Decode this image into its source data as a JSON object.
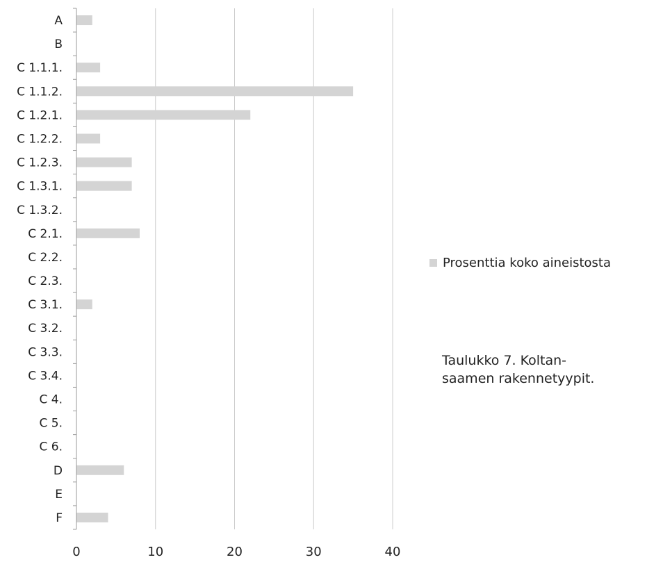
{
  "chart_data": {
    "type": "bar",
    "orientation": "horizontal",
    "categories": [
      "A",
      "B",
      "C 1.1.1.",
      "C 1.1.2.",
      "C 1.2.1.",
      "C 1.2.2.",
      "C 1.2.3.",
      "C 1.3.1.",
      "C 1.3.2.",
      "C 2.1.",
      "C 2.2.",
      "C 2.3.",
      "C 3.1.",
      "C 3.2.",
      "C 3.3.",
      "C 3.4.",
      "C 4.",
      "C 5.",
      "C 6.",
      "D",
      "E",
      "F"
    ],
    "series": [
      {
        "name": "Prosenttia koko aineistosta",
        "values": [
          2,
          0,
          3,
          35,
          22,
          3,
          7,
          7,
          0,
          8,
          0,
          0,
          2,
          0,
          0,
          0,
          0,
          0,
          0,
          6,
          0,
          4
        ]
      }
    ],
    "xlim": [
      0,
      40
    ],
    "xticks": [
      0,
      10,
      20,
      30,
      40
    ],
    "grid": "vertical",
    "legend_position": "right",
    "bar_color": "#d4d4d4",
    "grid_color": "#cccccc"
  },
  "caption": {
    "line1": "Taulukko 7. Koltan-",
    "line2": "saamen rakennetyypit."
  }
}
